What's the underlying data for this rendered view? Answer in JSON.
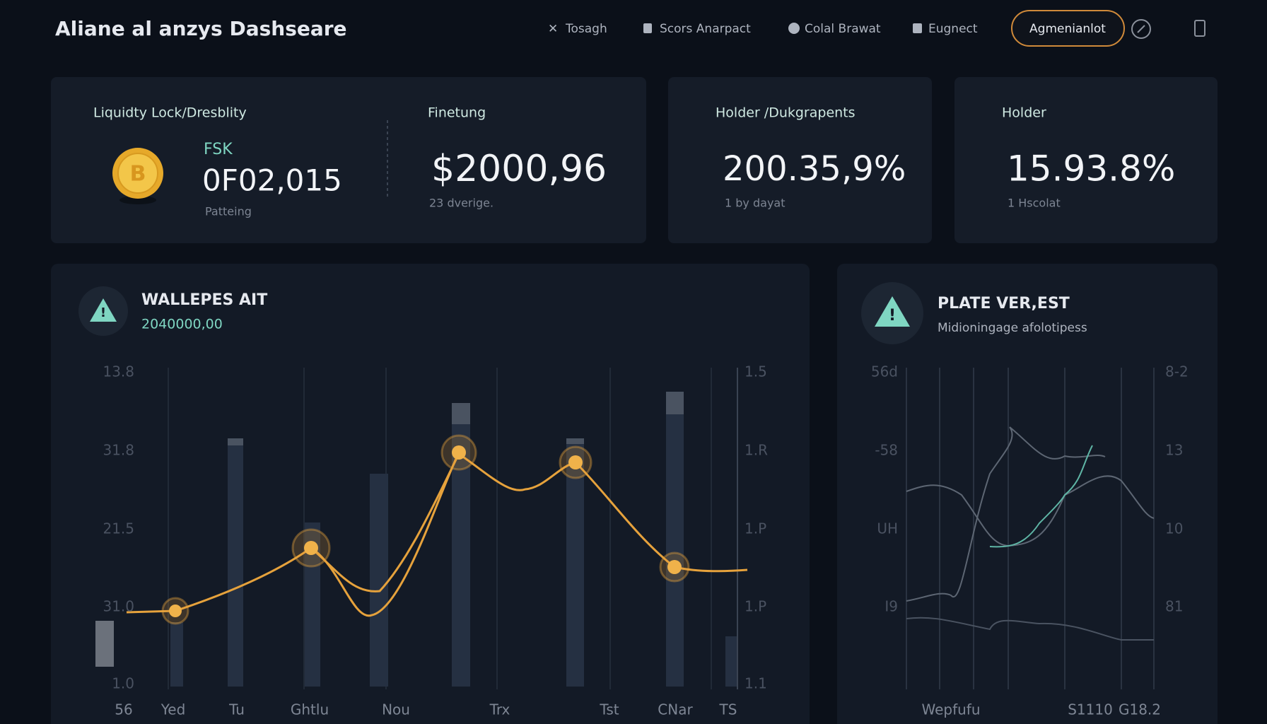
{
  "header": {
    "title": "Aliane al anzys Dashseare",
    "nav": [
      "Tosagh",
      "Scors Anarpact",
      "Colal Brawat",
      "Eugnect"
    ],
    "button": "Agmenianlot"
  },
  "cards": [
    {
      "label": "Liquidty Lock/Dresblity",
      "ticker": "FSK",
      "value": "0F02,015",
      "caption": "Patteing"
    },
    {
      "label": "Finetung",
      "value": "$2000,96",
      "caption": "23 dverige."
    },
    {
      "label": "Holder /Dukgrapents",
      "value": "200.35,9%",
      "caption": "1 by dayat"
    },
    {
      "label": "Holder",
      "value": "15.93.8%",
      "caption": "1 Hscolat"
    }
  ],
  "panels": [
    {
      "title": "WALLEPES AIT",
      "subtitle": "2040000,00",
      "y_left": [
        "13.8",
        "31.8",
        "21.5",
        "31.0",
        "1.0"
      ],
      "y_right": [
        "1.5",
        "1.R",
        "1.P",
        "1.P",
        "1.1"
      ],
      "x_labels": [
        "56",
        "Yed",
        "Tu",
        "Ghtlu",
        "Nou",
        "Trx",
        "Tst",
        "CNar",
        "TS"
      ]
    },
    {
      "title": "PLATE VER,EST",
      "subtitle": "Midioningage afolotipess",
      "y_left": [
        "56d",
        "-58",
        "UH",
        "I9"
      ],
      "y_right": [
        "8-2",
        "13",
        "10",
        "81"
      ],
      "x_labels": [
        "Wepfufu",
        "S1110",
        "G18.2"
      ]
    }
  ]
}
